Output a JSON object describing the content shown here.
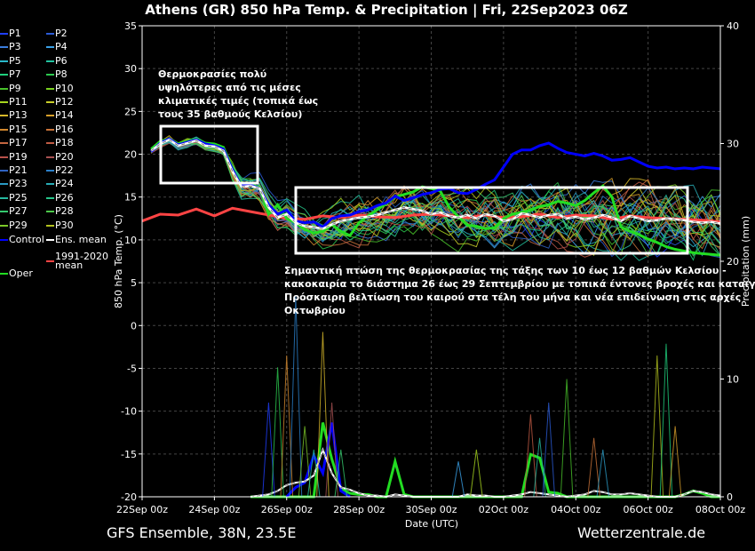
{
  "header": {
    "title": "Athens  (GR)  850 hPa Temp. & Precipitation | Fri, 22Sep2023 06Z"
  },
  "footer": {
    "left": "GFS Ensemble, 38N, 23.5E",
    "right": "Wetterzentrale.de"
  },
  "annotations": {
    "top_left": "Θερμοκρασίες πολύ\nυψηλότερες από τις μέσες\nκλιματικές τιμές (τοπικά έως\nτους 35 βαθμούς Κελσίου)",
    "bottom": "Σημαντική πτώση της θερμοκρασίας της τάξης των 10 έως 12 βαθμών Κελσίου -\nκακοκαιρία το διάστημα 26 έως 29 Σεπτεμβρίου με τοπικά έντονες βροχές και καταιγίδες.\nΠρόσκαιρη βελτίωση του καιρού στα τέλη του μήνα και νέα επιδείνωση στις αρχές\nΟκτωβρίου"
  },
  "legend": [
    {
      "label": "P1",
      "color": "#1f3fff"
    },
    {
      "label": "P2",
      "color": "#2b5bd6"
    },
    {
      "label": "P3",
      "color": "#3b7ddd"
    },
    {
      "label": "P4",
      "color": "#3aa0e6"
    },
    {
      "label": "P5",
      "color": "#29b8c9"
    },
    {
      "label": "P6",
      "color": "#22c3a0"
    },
    {
      "label": "P7",
      "color": "#1fd07d"
    },
    {
      "label": "P8",
      "color": "#2cc94f"
    },
    {
      "label": "P9",
      "color": "#48c22a"
    },
    {
      "label": "P10",
      "color": "#7ad21f"
    },
    {
      "label": "P11",
      "color": "#a7d61f"
    },
    {
      "label": "P12",
      "color": "#c9cf2a"
    },
    {
      "label": "P13",
      "color": "#d8b92a"
    },
    {
      "label": "P14",
      "color": "#d89f2a"
    },
    {
      "label": "P15",
      "color": "#d2882e"
    },
    {
      "label": "P16",
      "color": "#c97339"
    },
    {
      "label": "P17",
      "color": "#c46640"
    },
    {
      "label": "P18",
      "color": "#bf5a44"
    },
    {
      "label": "P19",
      "color": "#b8514a"
    },
    {
      "label": "P20",
      "color": "#a85152"
    },
    {
      "label": "P21",
      "color": "#2f63c2"
    },
    {
      "label": "P22",
      "color": "#2b7fc9"
    },
    {
      "label": "P23",
      "color": "#2a9ac4"
    },
    {
      "label": "P24",
      "color": "#28acb5"
    },
    {
      "label": "P25",
      "color": "#26b99f"
    },
    {
      "label": "P26",
      "color": "#27c58a"
    },
    {
      "label": "P27",
      "color": "#34c96e"
    },
    {
      "label": "P28",
      "color": "#4cc84a"
    },
    {
      "label": "P29",
      "color": "#7cc829"
    },
    {
      "label": "P30",
      "color": "#b3c21e"
    },
    {
      "label": "Control",
      "color": "#0000ff"
    },
    {
      "label": "Ens. mean",
      "color": "#ffffff"
    },
    {
      "label": "Oper",
      "color": "#22dd22"
    },
    {
      "label": "1991-2020\nmean",
      "color": "#ff4444"
    }
  ],
  "chart_data": {
    "type": "line",
    "title": "Athens  (GR)  850 hPa Temp. & Precipitation | Fri, 22Sep2023 06Z",
    "xlabel": "Date (UTC)",
    "ylabel": "850 hPa Temp. (°C)",
    "y2label": "Precipitation (mm)",
    "x_ticks": [
      "22Sep 00z",
      "24Sep 00z",
      "26Sep 00z",
      "28Sep 00z",
      "30Sep 00z",
      "02Oct 00z",
      "04Oct 00z",
      "06Oct 00z",
      "08Oct 00z"
    ],
    "x_range_hours": [
      0,
      384
    ],
    "ylim": [
      -20,
      35
    ],
    "y_ticks": [
      35,
      30,
      25,
      20,
      15,
      10,
      5,
      0,
      -5,
      -10,
      -15,
      -20
    ],
    "y2lim": [
      0,
      40
    ],
    "y2_ticks": [
      40,
      30,
      20,
      10,
      0
    ],
    "grid": true,
    "legend_position": "left",
    "series": [
      {
        "name": "Control",
        "x_hours": [
          6,
          12,
          18,
          24,
          30,
          36,
          42,
          48,
          54,
          60,
          66,
          72,
          78,
          84,
          90,
          96,
          102,
          108,
          114,
          120,
          126,
          132,
          138,
          144,
          150,
          156,
          162,
          168,
          174,
          180,
          186,
          192,
          198,
          204,
          210,
          216,
          222,
          228,
          234,
          240,
          246,
          252,
          258,
          264,
          270,
          276,
          282,
          288,
          294,
          300,
          306,
          312,
          318,
          324,
          330,
          336,
          342,
          348,
          354,
          360,
          366,
          372,
          378,
          384
        ],
        "values": [
          20.3,
          21.3,
          21.8,
          21.1,
          21.4,
          21.7,
          21.2,
          21.0,
          20.6,
          18.2,
          16.3,
          16.4,
          16.0,
          14.1,
          13.0,
          13.5,
          12.2,
          12.0,
          12.1,
          11.5,
          12.5,
          12.8,
          12.9,
          13.3,
          13.5,
          14.0,
          14.3,
          15.1,
          14.6,
          14.9,
          15.3,
          15.5,
          15.9,
          16.0,
          15.5,
          15.4,
          15.9,
          16.5,
          17.0,
          18.5,
          20.0,
          20.5,
          20.5,
          21.0,
          21.3,
          20.7,
          20.2,
          20.0,
          19.8,
          20.1,
          19.8,
          19.3,
          19.4,
          19.6,
          19.1,
          18.6,
          18.4,
          18.5,
          18.3,
          18.4,
          18.3,
          18.5,
          18.4,
          18.3
        ]
      },
      {
        "name": "Ens. mean",
        "x_hours": [
          6,
          12,
          18,
          24,
          30,
          36,
          42,
          48,
          54,
          60,
          66,
          72,
          78,
          84,
          90,
          96,
          102,
          108,
          114,
          120,
          126,
          132,
          138,
          144,
          150,
          156,
          162,
          168,
          174,
          180,
          186,
          192,
          198,
          204,
          210,
          216,
          222,
          228,
          234,
          240,
          246,
          252,
          258,
          264,
          270,
          276,
          282,
          288,
          294,
          300,
          306,
          312,
          318,
          324,
          330,
          336,
          342,
          348,
          354,
          360,
          366,
          372,
          378,
          384
        ],
        "values": [
          20.4,
          21.2,
          21.7,
          21.0,
          21.3,
          21.6,
          21.0,
          20.9,
          20.4,
          18.0,
          16.2,
          16.3,
          16.0,
          13.8,
          12.6,
          13.0,
          12.0,
          11.6,
          11.5,
          11.3,
          11.8,
          12.2,
          12.4,
          12.6,
          12.7,
          12.9,
          13.2,
          13.5,
          13.8,
          13.6,
          13.4,
          13.0,
          13.2,
          12.8,
          12.6,
          12.9,
          12.5,
          13.0,
          12.8,
          12.2,
          12.4,
          13.1,
          12.9,
          12.6,
          12.9,
          13.0,
          12.5,
          12.7,
          12.4,
          12.6,
          12.9,
          12.6,
          12.2,
          12.8,
          12.5,
          12.2,
          12.3,
          12.5,
          12.4,
          12.3,
          12.1,
          12.0,
          12.1,
          11.9
        ]
      },
      {
        "name": "Oper",
        "x_hours": [
          6,
          12,
          18,
          24,
          30,
          36,
          42,
          48,
          54,
          60,
          66,
          72,
          78,
          84,
          90,
          96,
          102,
          108,
          114,
          120,
          126,
          132,
          138,
          144,
          150,
          156,
          162,
          168,
          174,
          180,
          186,
          192,
          198,
          204,
          210,
          216,
          222,
          228,
          234,
          240,
          246,
          252,
          258,
          264,
          270,
          276,
          282,
          288,
          294,
          300,
          306,
          312,
          318,
          324,
          330,
          336,
          342,
          348,
          354,
          360,
          366,
          372,
          378,
          384
        ],
        "values": [
          20.6,
          21.5,
          21.8,
          21.2,
          21.5,
          21.8,
          21.3,
          21.2,
          20.8,
          18.3,
          16.5,
          16.5,
          16.1,
          13.0,
          14.1,
          12.5,
          12.0,
          11.2,
          10.8,
          11.0,
          11.8,
          11.0,
          10.5,
          12.0,
          12.8,
          13.5,
          14.2,
          15.0,
          15.3,
          15.6,
          16.2,
          16.0,
          15.7,
          13.8,
          12.7,
          11.7,
          11.6,
          11.3,
          11.4,
          12.5,
          13.0,
          13.2,
          13.5,
          13.9,
          14.1,
          14.5,
          14.3,
          14.0,
          14.6,
          15.5,
          16.3,
          15.0,
          11.5,
          11.0,
          10.6,
          10.1,
          9.7,
          9.2,
          8.9,
          8.7,
          8.5,
          8.4,
          8.3,
          8.2
        ]
      },
      {
        "name": "1991-2020\nmean",
        "x_hours": [
          0,
          12,
          24,
          36,
          48,
          60,
          72,
          84,
          96,
          108,
          120,
          132,
          144,
          156,
          168,
          180,
          192,
          204,
          216,
          228,
          240,
          252,
          264,
          276,
          288,
          300,
          312,
          324,
          336,
          348,
          360,
          372,
          384
        ],
        "values": [
          12.2,
          13.0,
          12.9,
          13.6,
          12.8,
          13.7,
          13.3,
          12.9,
          12.5,
          12.4,
          12.8,
          12.6,
          12.9,
          12.7,
          12.6,
          12.9,
          13.0,
          12.8,
          12.6,
          12.9,
          12.6,
          12.7,
          13.0,
          12.6,
          12.9,
          12.8,
          12.4,
          12.8,
          12.6,
          12.5,
          12.4,
          12.3,
          12.1
        ]
      }
    ],
    "precipitation_series": [
      {
        "name": "Oper",
        "x_hours": [
          72,
          78,
          84,
          90,
          96,
          102,
          108,
          114,
          120,
          126,
          132,
          138,
          144,
          150,
          156,
          162,
          168,
          174,
          180,
          186,
          192,
          198,
          204,
          210,
          216,
          222,
          228,
          234,
          240,
          246,
          252,
          258,
          264,
          270,
          276,
          282,
          288,
          294,
          300,
          306,
          312,
          318,
          324,
          330,
          336,
          342,
          348,
          354,
          360,
          366,
          372,
          378,
          384
        ],
        "values": [
          0,
          0,
          0,
          0,
          0,
          0,
          0,
          0,
          6.3,
          3.2,
          0.7,
          0.3,
          0.2,
          0.2,
          0,
          0,
          3.0,
          0.2,
          0,
          0,
          0,
          0,
          0,
          0,
          0,
          0,
          0,
          0,
          0,
          0,
          0,
          3.6,
          3.3,
          0.4,
          0.3,
          0,
          0,
          0,
          0,
          0,
          0,
          0,
          0,
          0,
          0,
          0,
          0,
          0,
          0.2,
          0.5,
          0.3,
          0,
          0
        ]
      },
      {
        "name": "Control",
        "x_hours": [
          96,
          102,
          108,
          114,
          120,
          126,
          132,
          138
        ],
        "values": [
          0,
          0.8,
          1.2,
          3.5,
          2.0,
          6.3,
          0.5,
          0
        ]
      },
      {
        "name": "Ens. mean",
        "x_hours": [
          72,
          78,
          84,
          90,
          96,
          102,
          108,
          114,
          120,
          126,
          132,
          138,
          144,
          150,
          156,
          162,
          168,
          174,
          180,
          186,
          192,
          198,
          204,
          210,
          216,
          222,
          228,
          234,
          240,
          246,
          252,
          258,
          264,
          270,
          276,
          282,
          288,
          294,
          300,
          306,
          312,
          318,
          324,
          330,
          336,
          342,
          348,
          354,
          360,
          366,
          372,
          378,
          384
        ],
        "values": [
          0,
          0.1,
          0.2,
          0.5,
          1.0,
          1.2,
          1.3,
          1.8,
          4.0,
          2.0,
          0.8,
          0.6,
          0.3,
          0.1,
          0.1,
          0,
          0.2,
          0.1,
          0,
          0,
          0,
          0,
          0,
          0,
          0.2,
          0.1,
          0.1,
          0,
          0,
          0.1,
          0.2,
          0.4,
          0.3,
          0.2,
          0.1,
          0,
          0.1,
          0.2,
          0.5,
          0.4,
          0.2,
          0.2,
          0.3,
          0.2,
          0.1,
          0,
          0,
          0,
          0.2,
          0.5,
          0.4,
          0.2,
          0.1
        ]
      }
    ]
  }
}
